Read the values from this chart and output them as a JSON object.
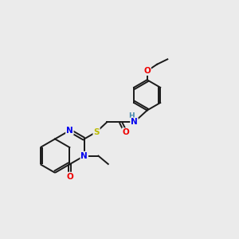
{
  "background_color": "#ebebeb",
  "bond_color": "#1a1a1a",
  "atom_colors": {
    "N": "#0000ee",
    "O": "#ee0000",
    "S": "#bbbb00",
    "H": "#4488aa",
    "C": "#1a1a1a"
  },
  "lw": 1.4,
  "off": 0.055
}
